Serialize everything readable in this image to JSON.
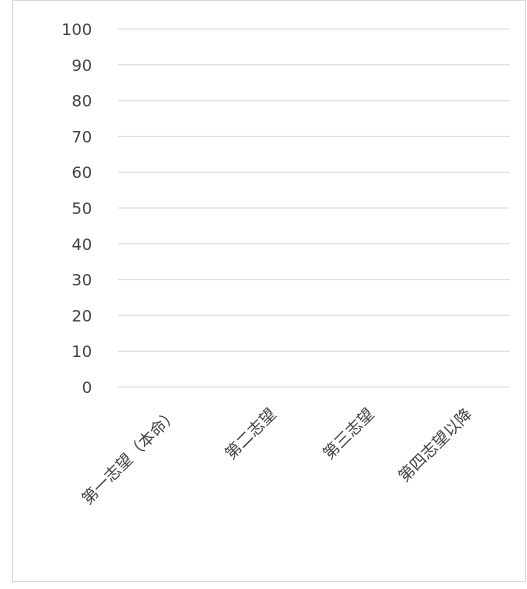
{
  "chart_data": {
    "type": "bar",
    "title": "",
    "xlabel": "",
    "ylabel": "",
    "categories": [
      "第一志望（本命）",
      "第二志望",
      "第三志望",
      "第四志望以降"
    ],
    "series": [
      {
        "values": [
          0,
          0,
          0,
          0
        ]
      }
    ],
    "ylim": [
      0,
      100
    ],
    "yticks": [
      0,
      10,
      20,
      30,
      40,
      50,
      60,
      70,
      80,
      90,
      100
    ],
    "grid": true,
    "legend": "none",
    "colors": {
      "grid": "#d9d9d9",
      "text": "#404040",
      "border": "#d9d9d9",
      "bar": "#4472c4"
    }
  }
}
